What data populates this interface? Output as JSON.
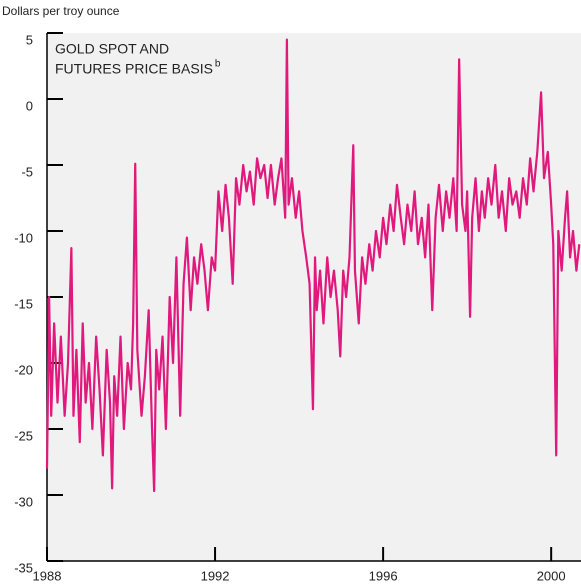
{
  "chart_data": {
    "type": "line",
    "title": [
      "GOLD SPOT AND",
      "FUTURES PRICE BASIS"
    ],
    "title_note": "b",
    "y_label": "Dollars per troy ounce",
    "color": "#e0197d",
    "xlim": [
      1988,
      2000.71
    ],
    "xticks": [
      1988,
      1992,
      1996,
      2000
    ],
    "ylim": [
      -35,
      5
    ],
    "yticks": [
      5,
      0,
      -5,
      -10,
      -15,
      -20,
      -25,
      -30,
      -35
    ],
    "x": [
      1988.0,
      1988.05,
      1988.1,
      1988.17,
      1988.25,
      1988.33,
      1988.42,
      1988.5,
      1988.58,
      1988.63,
      1988.7,
      1988.78,
      1988.85,
      1988.92,
      1989.0,
      1989.08,
      1989.17,
      1989.25,
      1989.33,
      1989.42,
      1989.5,
      1989.55,
      1989.6,
      1989.67,
      1989.75,
      1989.83,
      1989.92,
      1990.0,
      1990.05,
      1990.1,
      1990.15,
      1990.25,
      1990.33,
      1990.42,
      1990.5,
      1990.55,
      1990.6,
      1990.67,
      1990.75,
      1990.83,
      1990.92,
      1991.0,
      1991.08,
      1991.17,
      1991.25,
      1991.33,
      1991.42,
      1991.5,
      1991.58,
      1991.67,
      1991.75,
      1991.83,
      1991.92,
      1992.0,
      1992.08,
      1992.17,
      1992.25,
      1992.33,
      1992.42,
      1992.5,
      1992.58,
      1992.67,
      1992.75,
      1992.83,
      1992.92,
      1993.0,
      1993.08,
      1993.17,
      1993.25,
      1993.33,
      1993.42,
      1993.5,
      1993.58,
      1993.67,
      1993.71,
      1993.75,
      1993.83,
      1993.92,
      1994.0,
      1994.08,
      1994.17,
      1994.25,
      1994.33,
      1994.38,
      1994.42,
      1994.5,
      1994.58,
      1994.67,
      1994.75,
      1994.83,
      1994.92,
      1994.98,
      1995.05,
      1995.12,
      1995.2,
      1995.29,
      1995.33,
      1995.42,
      1995.5,
      1995.58,
      1995.67,
      1995.75,
      1995.83,
      1995.92,
      1996.0,
      1996.08,
      1996.17,
      1996.25,
      1996.33,
      1996.42,
      1996.5,
      1996.58,
      1996.67,
      1996.75,
      1996.83,
      1996.92,
      1997.0,
      1997.08,
      1997.17,
      1997.25,
      1997.33,
      1997.42,
      1997.5,
      1997.58,
      1997.67,
      1997.75,
      1997.81,
      1997.88,
      1997.96,
      1998.0,
      1998.07,
      1998.12,
      1998.2,
      1998.28,
      1998.35,
      1998.42,
      1998.5,
      1998.58,
      1998.67,
      1998.75,
      1998.83,
      1998.92,
      1999.0,
      1999.08,
      1999.17,
      1999.25,
      1999.33,
      1999.42,
      1999.5,
      1999.58,
      1999.67,
      1999.76,
      1999.83,
      1999.92,
      2000.0,
      2000.05,
      2000.12,
      2000.17,
      2000.25,
      2000.33,
      2000.38,
      2000.45,
      2000.52,
      2000.6,
      2000.67
    ],
    "values": [
      -28,
      -15,
      -24,
      -17,
      -23,
      -18,
      -24,
      -20,
      -11.3,
      -24,
      -19,
      -26,
      -17,
      -23,
      -20,
      -25,
      -18,
      -22,
      -27,
      -19,
      -23,
      -29.5,
      -21,
      -24,
      -18,
      -25,
      -20,
      -22,
      -17,
      -4.9,
      -19,
      -24,
      -21,
      -16,
      -25,
      -29.7,
      -19,
      -22,
      -18,
      -25,
      -15,
      -20,
      -12,
      -24,
      -14,
      -10.5,
      -16,
      -12,
      -14,
      -11,
      -13,
      -16,
      -12,
      -13,
      -7,
      -10,
      -6.5,
      -9,
      -14,
      -6,
      -8,
      -5,
      -7,
      -5.5,
      -8,
      -4.5,
      -6,
      -5,
      -7.5,
      -5,
      -8,
      -6,
      -4.5,
      -9,
      4.5,
      -8,
      -6,
      -9,
      -7,
      -10,
      -12,
      -14,
      -23.5,
      -12,
      -16,
      -13,
      -17,
      -12,
      -15,
      -13,
      -16,
      -19.5,
      -13,
      -15,
      -12,
      -3.5,
      -13,
      -17,
      -12,
      -14,
      -11,
      -13,
      -10,
      -12,
      -9,
      -11,
      -8,
      -10,
      -6.5,
      -9,
      -11,
      -8,
      -10,
      -7,
      -11,
      -9,
      -12,
      -8,
      -16,
      -9,
      -6.5,
      -10,
      -7,
      -9,
      -6,
      -10,
      3,
      -8,
      -10,
      -7,
      -16.5,
      -9,
      -6,
      -10,
      -7,
      -9,
      -6,
      -8,
      -5,
      -9,
      -7,
      -10,
      -6,
      -8,
      -7,
      -9,
      -6,
      -8,
      -4.5,
      -7,
      -4,
      0.5,
      -6,
      -4,
      -8,
      -11,
      -27,
      -10,
      -13,
      -9,
      -7,
      -12,
      -10,
      -13,
      -11
    ]
  }
}
